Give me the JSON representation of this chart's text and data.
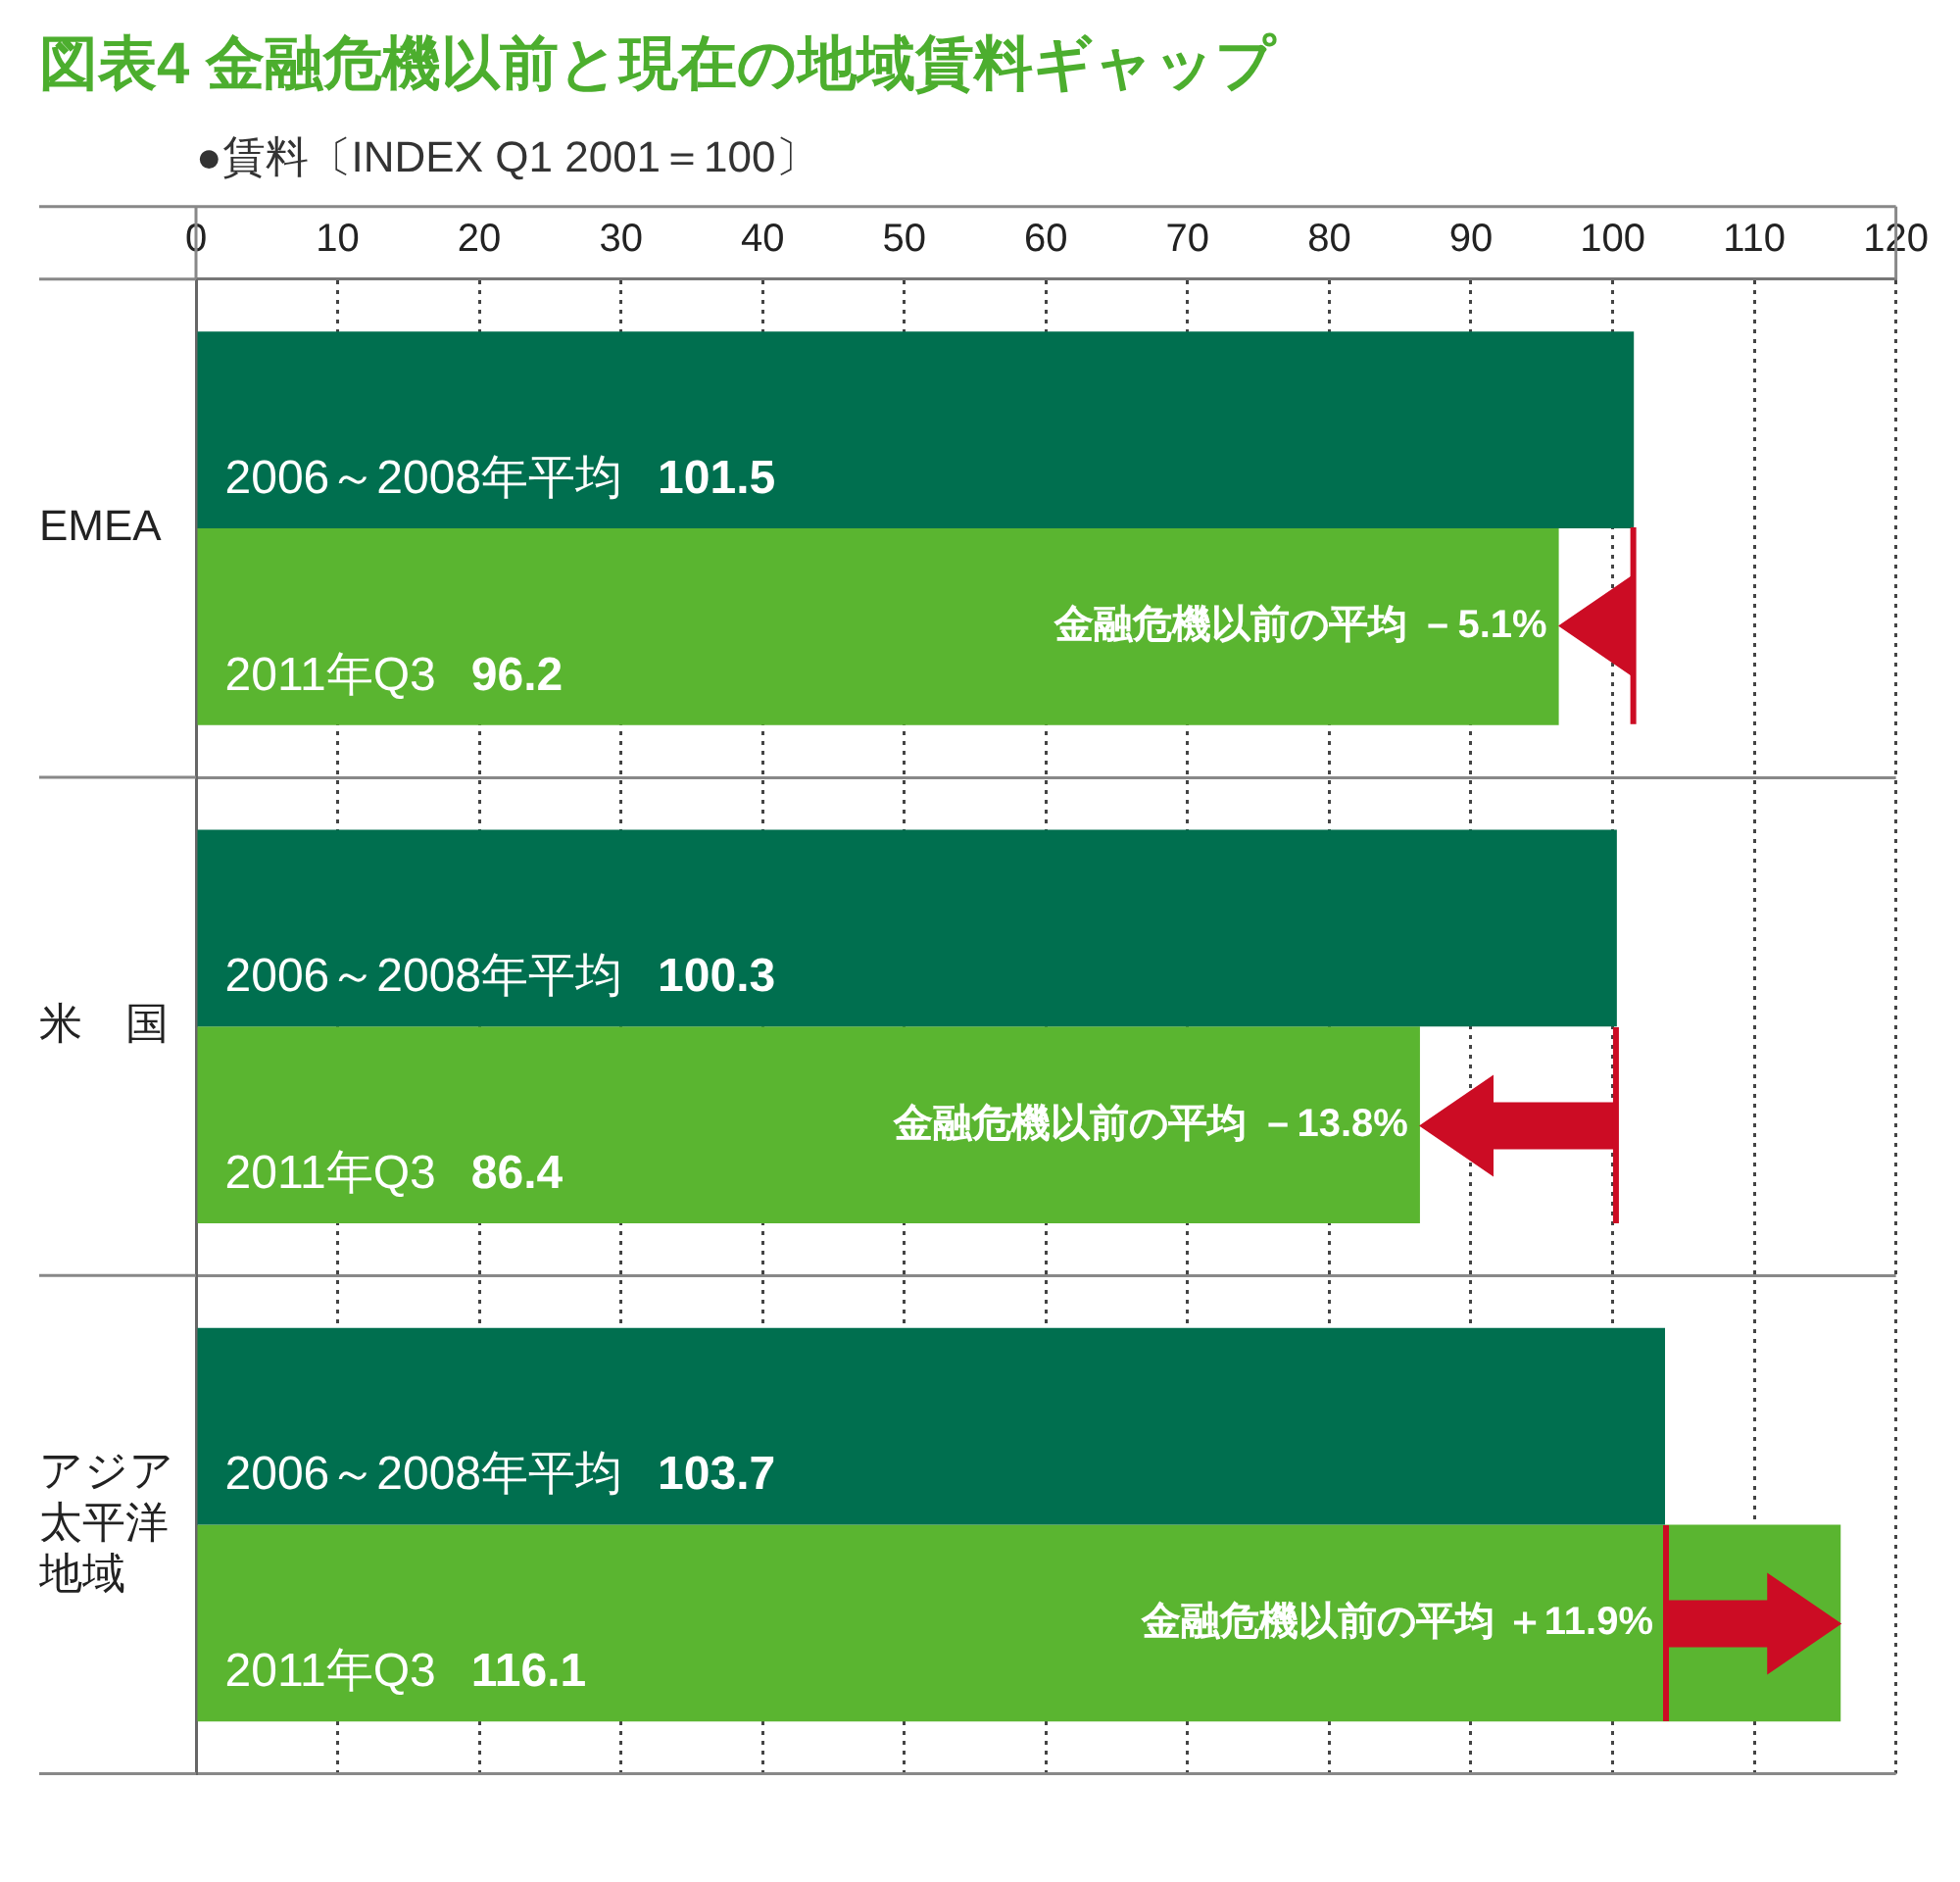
{
  "chart_data": {
    "type": "bar",
    "orientation": "horizontal",
    "title": "図表4 金融危機以前と現在の地域賃料ギャップ",
    "xlabel": "●賃料〔INDEX Q1 2001＝100〕",
    "categories": [
      "EMEA",
      "米　国",
      "アジア太平洋地域"
    ],
    "series": [
      {
        "name": "2006～2008年平均",
        "color": "#006f4f",
        "values": [
          101.5,
          100.3,
          103.7
        ]
      },
      {
        "name": "2011年Q3",
        "color": "#5ab530",
        "values": [
          96.2,
          86.4,
          116.1
        ]
      }
    ],
    "xlim": [
      0,
      120
    ],
    "xticks": [
      0,
      10,
      20,
      30,
      40,
      50,
      60,
      70,
      80,
      90,
      100,
      110,
      120
    ],
    "grid": true,
    "data_labels": true,
    "annotations": [
      {
        "text": "金融危機以前の平均 －5.1%",
        "x": 96.2,
        "y": "EMEA"
      },
      {
        "text": "金融危機以前の平均 －13.8%",
        "x": 86.4,
        "y": "米　国"
      },
      {
        "text": "金融危機以前の平均 ＋11.9%",
        "x": 103.7,
        "y": "アジア太平洋地域"
      }
    ]
  }
}
